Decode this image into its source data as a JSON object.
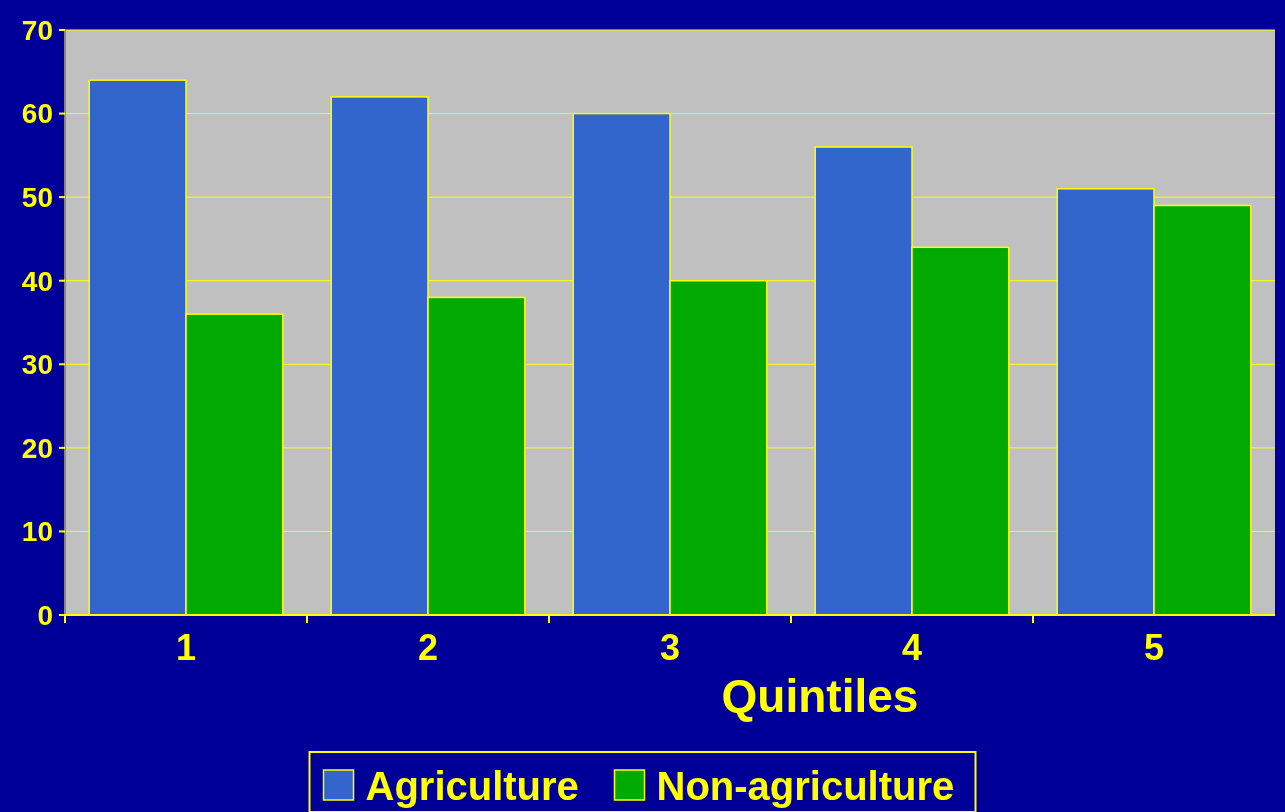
{
  "chart_data": {
    "type": "bar",
    "xlabel": "Quintiles",
    "categories": [
      "1",
      "2",
      "3",
      "4",
      "5"
    ],
    "series": [
      {
        "name": "Agriculture",
        "color": "#3366cc",
        "values": [
          64,
          62,
          60,
          56,
          51
        ]
      },
      {
        "name": "Non-agriculture",
        "color": "#00aa00",
        "values": [
          36,
          38,
          40,
          44,
          49
        ]
      }
    ],
    "ylim": [
      0,
      70
    ],
    "yticks": [
      0,
      10,
      20,
      30,
      40,
      50,
      60,
      70
    ],
    "grid": "y",
    "legend": "bottom"
  }
}
